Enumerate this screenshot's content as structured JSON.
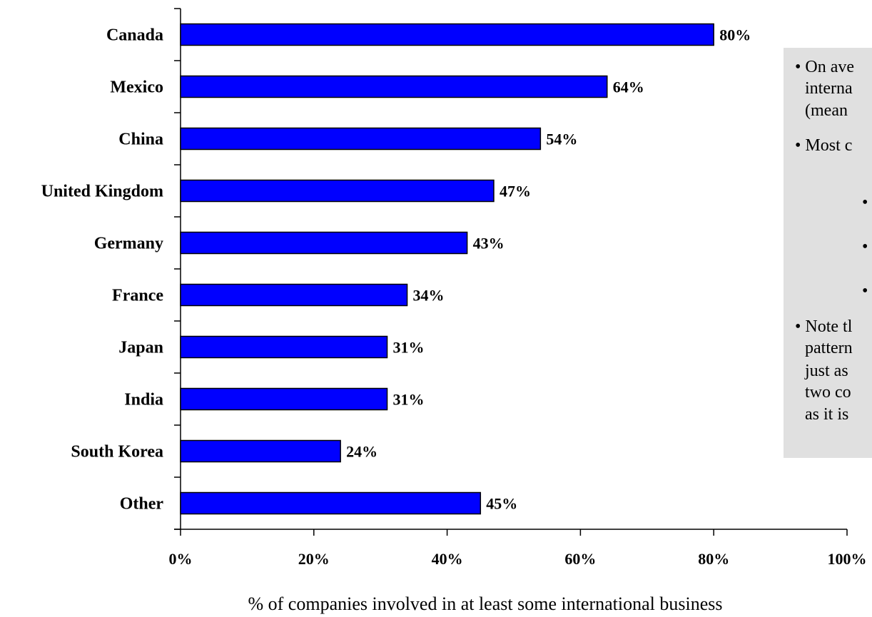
{
  "chart_data": {
    "type": "bar",
    "orientation": "horizontal",
    "categories": [
      "Canada",
      "Mexico",
      "China",
      "United Kingdom",
      "Germany",
      "France",
      "Japan",
      "India",
      "South Korea",
      "Other"
    ],
    "values": [
      80,
      64,
      54,
      47,
      43,
      34,
      31,
      31,
      24,
      45
    ],
    "value_labels": [
      "80%",
      "64%",
      "54%",
      "47%",
      "43%",
      "34%",
      "31%",
      "31%",
      "24%",
      "45%"
    ],
    "xlim": [
      0,
      100
    ],
    "x_ticks": [
      "0%",
      "20%",
      "40%",
      "60%",
      "80%",
      "100%"
    ],
    "xlabel": "% of companies involved in at least some international business",
    "ylabel": "",
    "title": "",
    "grid": false,
    "bar_color": "#0000FF"
  },
  "notes": {
    "lines": [
      "• On ave",
      "interna",
      "(mean",
      "• Most c",
      "•",
      "•",
      "•",
      "• Note tl",
      "pattern",
      "just as",
      "two co",
      "as it is"
    ]
  }
}
